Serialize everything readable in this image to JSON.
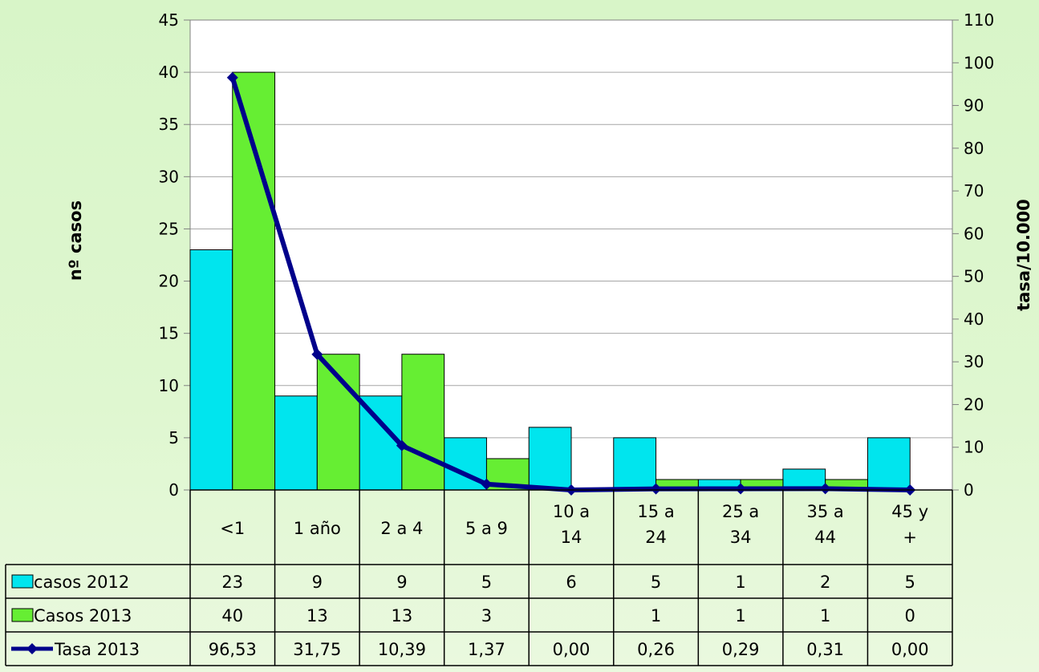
{
  "chart_data": {
    "type": "bar",
    "categories": [
      [
        "<1"
      ],
      [
        "1 año"
      ],
      [
        "2 a 4"
      ],
      [
        "5 a 9"
      ],
      [
        "10 a",
        "14"
      ],
      [
        "15 a",
        "24"
      ],
      [
        "25 a",
        "34"
      ],
      [
        "35 a",
        "44"
      ],
      [
        "45 y",
        "+"
      ]
    ],
    "series": [
      {
        "name": "casos 2012",
        "kind": "bar",
        "axis": "left",
        "color": "#00e5ee",
        "values": [
          23,
          9,
          9,
          5,
          6,
          5,
          1,
          2,
          5
        ],
        "labels": [
          "23",
          "9",
          "9",
          "5",
          "6",
          "5",
          "1",
          "2",
          "5"
        ]
      },
      {
        "name": "Casos 2013",
        "kind": "bar",
        "axis": "left",
        "color": "#66ee33",
        "values": [
          40,
          13,
          13,
          3,
          null,
          1,
          1,
          1,
          0
        ],
        "labels": [
          "40",
          "13",
          "13",
          "3",
          "",
          "1",
          "1",
          "1",
          "0"
        ]
      },
      {
        "name": "Tasa 2013",
        "kind": "line",
        "axis": "right",
        "color": "#00008b",
        "values": [
          96.53,
          31.75,
          10.39,
          1.37,
          0.0,
          0.26,
          0.29,
          0.31,
          0.0
        ],
        "labels": [
          "96,53",
          "31,75",
          "10,39",
          "1,37",
          "0,00",
          "0,26",
          "0,29",
          "0,31",
          "0,00"
        ]
      }
    ],
    "ylabel": "nº casos",
    "y2label": "tasa/10.000",
    "ylim": [
      0,
      45
    ],
    "y2lim": [
      0,
      110
    ],
    "yticks": [
      0,
      5,
      10,
      15,
      20,
      25,
      30,
      35,
      40,
      45
    ],
    "y2ticks": [
      0,
      10,
      20,
      30,
      40,
      50,
      60,
      70,
      80,
      90,
      100,
      110
    ],
    "grid": true,
    "legend": "data-table"
  }
}
